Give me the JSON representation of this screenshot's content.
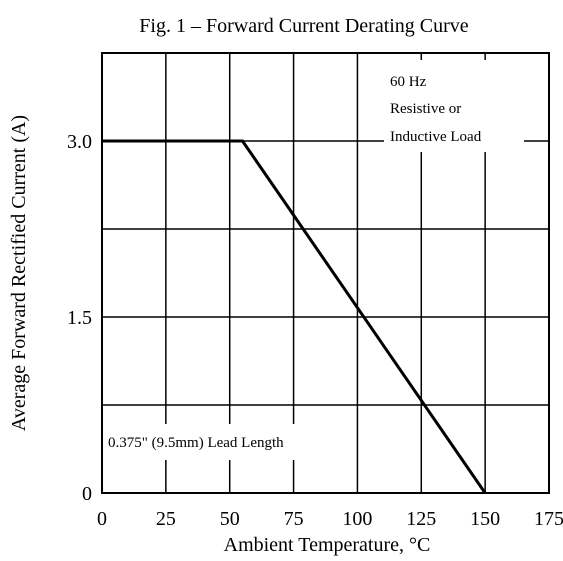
{
  "chart_data": {
    "type": "line",
    "title": "Fig. 1  –  Forward Current Derating Curve",
    "xlabel": "Ambient Temperature, °C",
    "ylabel": "Average Forward Rectified Current (A)",
    "xlim": [
      0,
      175
    ],
    "ylim": [
      0,
      3.75
    ],
    "x_ticks": [
      0,
      25,
      50,
      75,
      100,
      125,
      150,
      175
    ],
    "x_tick_labels": [
      "0",
      "25",
      "50",
      "75",
      "100",
      "125",
      "150",
      "175"
    ],
    "y_ticks": [
      0,
      1.5,
      3.0
    ],
    "y_tick_labels": [
      "0",
      "1.5",
      "3.0"
    ],
    "x_grid": [
      25,
      50,
      75,
      100,
      125,
      150
    ],
    "y_grid": [
      0.75,
      1.5,
      2.25,
      3.0
    ],
    "grid": true,
    "series": [
      {
        "x": [
          0,
          55,
          150
        ],
        "y": [
          3.0,
          3.0,
          0
        ]
      }
    ],
    "annotations": {
      "load": [
        "60 Hz",
        "Resistive or",
        "Inductive Load"
      ],
      "lead": "0.375\" (9.5mm) Lead Length"
    }
  }
}
